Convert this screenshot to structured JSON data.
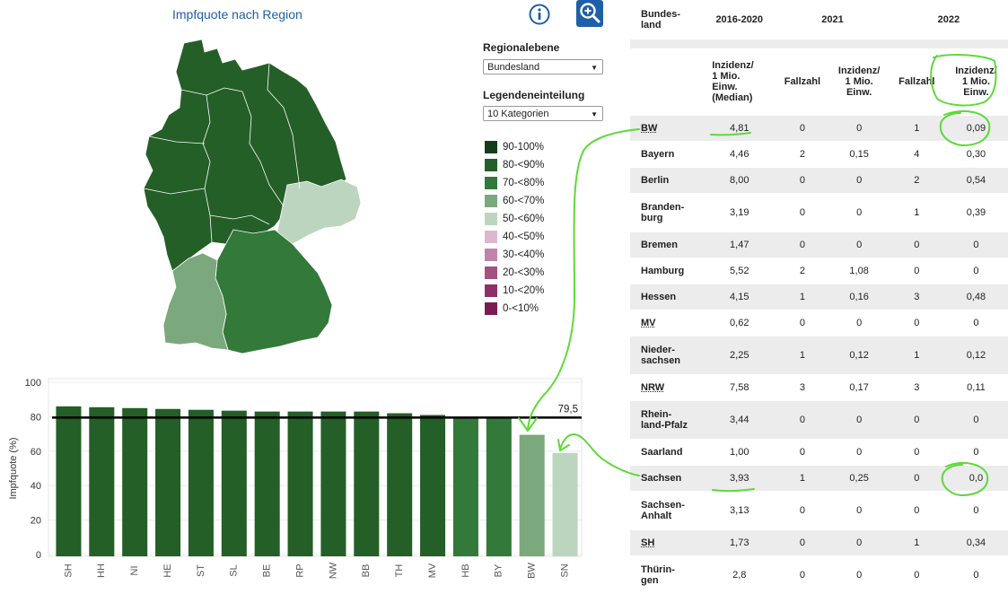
{
  "header": {
    "title": "Impfquote nach Region",
    "info_icon": "info-icon",
    "zoom_icon": "zoom-in-icon",
    "accent": "#1f5fa8"
  },
  "controls": {
    "region_label": "Regionalebene",
    "region_value": "Bundesland",
    "legend_label": "Legendeneinteilung",
    "legend_value": "10 Kategorien"
  },
  "legend": [
    {
      "label": "90-100%",
      "color": "#173d18"
    },
    {
      "label": "80-<90%",
      "color": "#245f27"
    },
    {
      "label": "70-<80%",
      "color": "#33793a"
    },
    {
      "label": "60-<70%",
      "color": "#7ba87c"
    },
    {
      "label": "50-<60%",
      "color": "#bcd5bf"
    },
    {
      "label": "40-<50%",
      "color": "#ddb7cf"
    },
    {
      "label": "30-<40%",
      "color": "#c084ab"
    },
    {
      "label": "20-<30%",
      "color": "#a45083"
    },
    {
      "label": "10-<20%",
      "color": "#8e2f66"
    },
    {
      "label": "0-<10%",
      "color": "#7a1c51"
    }
  ],
  "chart_data": {
    "type": "bar",
    "categories": [
      "SH",
      "HH",
      "NI",
      "HE",
      "ST",
      "SL",
      "BE",
      "RP",
      "NW",
      "BB",
      "TH",
      "MV",
      "HB",
      "BY",
      "BW",
      "SN"
    ],
    "values": [
      86,
      85.5,
      85,
      84.5,
      84,
      83.5,
      83,
      83,
      83,
      83,
      82,
      81,
      79,
      79,
      69.5,
      59
    ],
    "colors": [
      "#245f27",
      "#245f27",
      "#245f27",
      "#245f27",
      "#245f27",
      "#245f27",
      "#245f27",
      "#245f27",
      "#245f27",
      "#245f27",
      "#245f27",
      "#245f27",
      "#33793a",
      "#33793a",
      "#7ba87c",
      "#bcd5bf"
    ],
    "reference_line": {
      "value": 79.5,
      "label": "79,5"
    },
    "ylabel": "Impfquote (%)",
    "ylim": [
      0,
      100
    ],
    "yticks": [
      0,
      20,
      40,
      60,
      80,
      100
    ],
    "grid": true
  },
  "table": {
    "header_top": [
      "Bundes-\nland",
      "2016-2020",
      "2021",
      "2022"
    ],
    "header_sub": [
      "",
      "Inzidenz/\n1 Mio.\nEinw.\n(Median)",
      "Fallzahl",
      "Inzidenz/\n1 Mio.\nEinw.",
      "Fallzahl",
      "Inzidenz/\n1 Mio.\nEinw."
    ],
    "rows": [
      [
        "BW",
        "4,81",
        "0",
        "0",
        "1",
        "0,09"
      ],
      [
        "Bayern",
        "4,46",
        "2",
        "0,15",
        "4",
        "0,30"
      ],
      [
        "Berlin",
        "8,00",
        "0",
        "0",
        "2",
        "0,54"
      ],
      [
        "Branden-\nburg",
        "3,19",
        "0",
        "0",
        "1",
        "0,39"
      ],
      [
        "Bremen",
        "1,47",
        "0",
        "0",
        "0",
        "0"
      ],
      [
        "Hamburg",
        "5,52",
        "2",
        "1,08",
        "0",
        "0"
      ],
      [
        "Hessen",
        "4,15",
        "1",
        "0,16",
        "3",
        "0,48"
      ],
      [
        "MV",
        "0,62",
        "0",
        "0",
        "0",
        "0"
      ],
      [
        "Nieder-\nsachsen",
        "2,25",
        "1",
        "0,12",
        "1",
        "0,12"
      ],
      [
        "NRW",
        "7,58",
        "3",
        "0,17",
        "3",
        "0,11"
      ],
      [
        "Rhein-\nland-Pfalz",
        "3,44",
        "0",
        "0",
        "0",
        "0"
      ],
      [
        "Saarland",
        "1,00",
        "0",
        "0",
        "0",
        "0"
      ],
      [
        "Sachsen",
        "3,93",
        "1",
        "0,25",
        "0",
        "0,0"
      ],
      [
        "Sachsen-\nAnhalt",
        "3,13",
        "0",
        "0",
        "0",
        "0"
      ],
      [
        "SH",
        "1,73",
        "0",
        "0",
        "1",
        "0,34"
      ],
      [
        "Thürin-\ngen",
        "2,8",
        "0",
        "0",
        "0",
        "0"
      ]
    ]
  },
  "annotation_color": "#5fd93a"
}
